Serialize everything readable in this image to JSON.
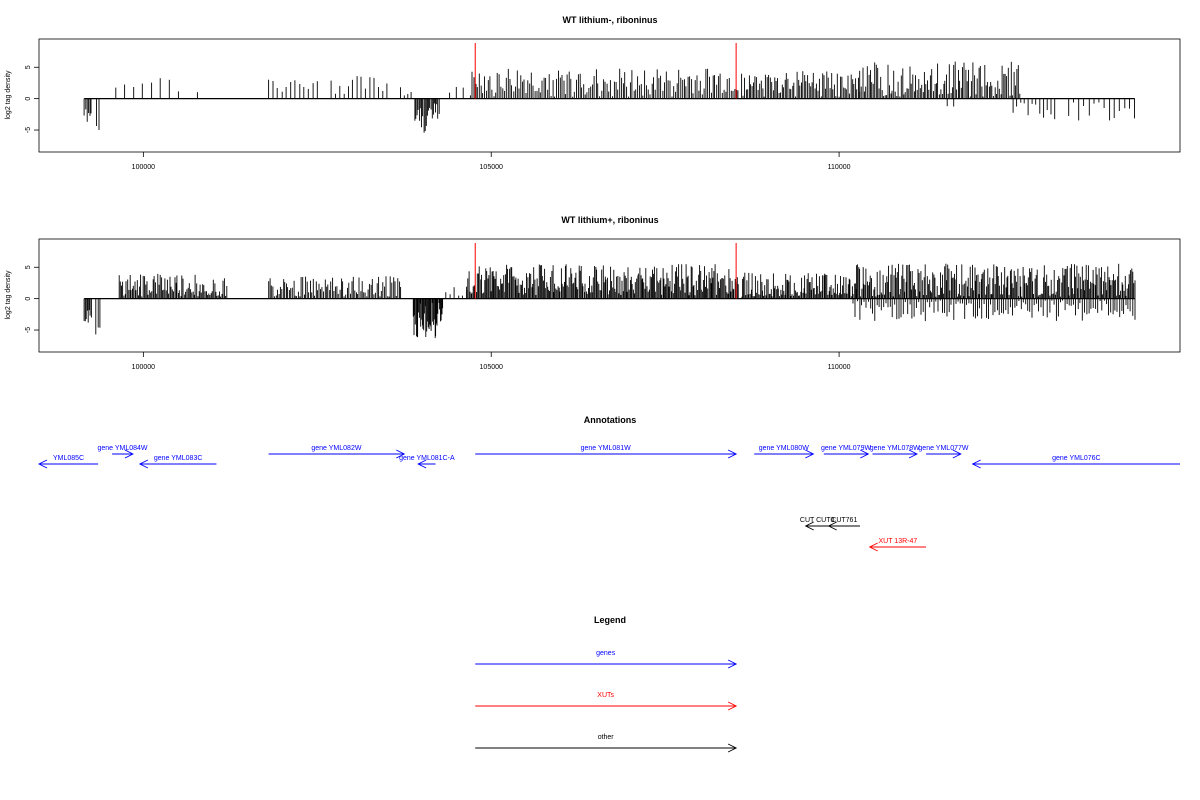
{
  "colors": {
    "gene": "#0000ff",
    "xut": "#ff0000",
    "other": "#000000",
    "highlight": "#ff0000",
    "axis": "#000000"
  },
  "chart_data": [
    {
      "type": "bar",
      "title": "WT lithium-, riboninus",
      "ylabel": "log2 tag density",
      "xlim": [
        98500,
        114900
      ],
      "ylim": [
        -8.5,
        9.5
      ],
      "xticks": [
        100000,
        105000,
        110000
      ],
      "xtick_labels": [
        "100000",
        "105000",
        "110000"
      ],
      "yticks": [
        5,
        0,
        -5
      ],
      "ytick_labels": [
        "5",
        "0",
        "-5"
      ],
      "highlight_x": [
        104770,
        108520
      ],
      "segments": [
        {
          "from": 99150,
          "to": 99250,
          "n": 6,
          "base": -2.8,
          "amp": 1.2,
          "seed": 1
        },
        {
          "from": 99330,
          "to": 99360,
          "n": 2,
          "base": -4.0,
          "amp": 1.5,
          "seed": 2
        },
        {
          "from": 99600,
          "to": 100500,
          "n": 8,
          "base": 2.6,
          "amp": 1.5,
          "seed": 3
        },
        {
          "from": 100750,
          "to": 100800,
          "n": 1,
          "base": 1.3,
          "amp": 0.3,
          "seed": 4
        },
        {
          "from": 101800,
          "to": 102500,
          "n": 12,
          "base": 2.0,
          "amp": 1.3,
          "seed": 5
        },
        {
          "from": 102700,
          "to": 103500,
          "n": 14,
          "base": 2.2,
          "amp": 1.5,
          "seed": 6
        },
        {
          "from": 103700,
          "to": 103850,
          "n": 4,
          "base": 1.5,
          "amp": 2.5,
          "seed": 7
        },
        {
          "from": 103900,
          "to": 104250,
          "n": 22,
          "base": -3.0,
          "amp": 2.5,
          "seed": 8
        },
        {
          "from": 104400,
          "to": 104600,
          "n": 3,
          "base": 1.5,
          "amp": 1.0,
          "seed": 9
        },
        {
          "from": 104700,
          "to": 108550,
          "n": 150,
          "base": 2.5,
          "amp": 2.3,
          "seed": 10
        },
        {
          "from": 108600,
          "to": 110300,
          "n": 80,
          "base": 2.2,
          "amp": 2.2,
          "seed": 11
        },
        {
          "from": 110300,
          "to": 112600,
          "n": 110,
          "base": 3.0,
          "amp": 3.0,
          "seed": 12
        },
        {
          "from": 111550,
          "to": 111650,
          "n": 2,
          "base": -1.3,
          "amp": 0.6,
          "seed": 13
        },
        {
          "from": 112500,
          "to": 113100,
          "n": 12,
          "base": -2.0,
          "amp": 1.5,
          "seed": 14
        },
        {
          "from": 113300,
          "to": 114250,
          "n": 14,
          "base": -2.0,
          "amp": 1.5,
          "seed": 15
        }
      ]
    },
    {
      "type": "bar",
      "title": "WT lithium+, riboninus",
      "ylabel": "log2 tag density",
      "xlim": [
        98500,
        114900
      ],
      "ylim": [
        -8.5,
        9.5
      ],
      "xticks": [
        100000,
        105000,
        110000
      ],
      "xtick_labels": [
        "100000",
        "105000",
        "110000"
      ],
      "yticks": [
        5,
        0,
        -5
      ],
      "ytick_labels": [
        "5",
        "0",
        "-5"
      ],
      "highlight_x": [
        104770,
        108520
      ],
      "segments": [
        {
          "from": 99150,
          "to": 99250,
          "n": 8,
          "base": -3.0,
          "amp": 1.2,
          "seed": 21
        },
        {
          "from": 99320,
          "to": 99380,
          "n": 3,
          "base": -4.5,
          "amp": 1.5,
          "seed": 22
        },
        {
          "from": 99650,
          "to": 101200,
          "n": 90,
          "base": 2.0,
          "amp": 2.0,
          "seed": 23
        },
        {
          "from": 101800,
          "to": 103700,
          "n": 90,
          "base": 1.8,
          "amp": 1.8,
          "seed": 24
        },
        {
          "from": 103880,
          "to": 104300,
          "n": 40,
          "base": -3.5,
          "amp": 3.0,
          "seed": 25
        },
        {
          "from": 104350,
          "to": 104650,
          "n": 6,
          "base": 1.2,
          "amp": 1.5,
          "seed": 26
        },
        {
          "from": 104650,
          "to": 108550,
          "n": 260,
          "base": 3.0,
          "amp": 2.5,
          "seed": 27
        },
        {
          "from": 108600,
          "to": 110250,
          "n": 110,
          "base": 2.0,
          "amp": 2.2,
          "seed": 28
        },
        {
          "from": 110250,
          "to": 114250,
          "n": 260,
          "base": 2.8,
          "amp": 2.8,
          "seed": 29
        },
        {
          "from": 110200,
          "to": 114250,
          "n": 130,
          "base": -1.8,
          "amp": 1.8,
          "seed": 30
        }
      ]
    }
  ],
  "annotations": {
    "title": "Annotations",
    "features": [
      {
        "label": "YML085C",
        "start": 98500,
        "end": 99350,
        "strand": "-",
        "row": 1,
        "kind": "gene"
      },
      {
        "label": "gene YML084W",
        "start": 99550,
        "end": 99850,
        "strand": "+",
        "row": 0,
        "kind": "gene"
      },
      {
        "label": "gene YML083C",
        "start": 99950,
        "end": 101050,
        "strand": "-",
        "row": 1,
        "kind": "gene"
      },
      {
        "label": "gene YML082W",
        "start": 101800,
        "end": 103750,
        "strand": "+",
        "row": 0,
        "kind": "gene"
      },
      {
        "label": "gene YML081C-A",
        "start": 103950,
        "end": 104200,
        "strand": "-",
        "row": 1,
        "kind": "gene"
      },
      {
        "label": "gene YML081W",
        "start": 104770,
        "end": 108520,
        "strand": "+",
        "row": 0,
        "kind": "gene"
      },
      {
        "label": "gene YML080W",
        "start": 108780,
        "end": 109630,
        "strand": "+",
        "row": 0,
        "kind": "gene"
      },
      {
        "label": "gene YML079W",
        "start": 109780,
        "end": 110420,
        "strand": "+",
        "row": 0,
        "kind": "gene"
      },
      {
        "label": "gene YML078W",
        "start": 110480,
        "end": 111120,
        "strand": "+",
        "row": 0,
        "kind": "gene"
      },
      {
        "label": "gene YML077W",
        "start": 111250,
        "end": 111750,
        "strand": "+",
        "row": 0,
        "kind": "gene"
      },
      {
        "label": "gene YML076C",
        "start": 111920,
        "end": 114900,
        "strand": "-",
        "row": 1,
        "kind": "gene"
      },
      {
        "label": "CUT CUT0",
        "start": 109520,
        "end": 109850,
        "strand": "-",
        "row": 3,
        "kind": "other"
      },
      {
        "label": "CUT761",
        "start": 109850,
        "end": 110300,
        "strand": "-",
        "row": 3,
        "kind": "other"
      },
      {
        "label": "XUT 13R-47",
        "start": 110440,
        "end": 111250,
        "strand": "-",
        "row": 4,
        "kind": "xut"
      }
    ]
  },
  "legend": {
    "title": "Legend",
    "items": [
      {
        "label": "genes",
        "kind": "gene"
      },
      {
        "label": "XUTs",
        "kind": "xut"
      },
      {
        "label": "other",
        "kind": "other"
      }
    ]
  }
}
